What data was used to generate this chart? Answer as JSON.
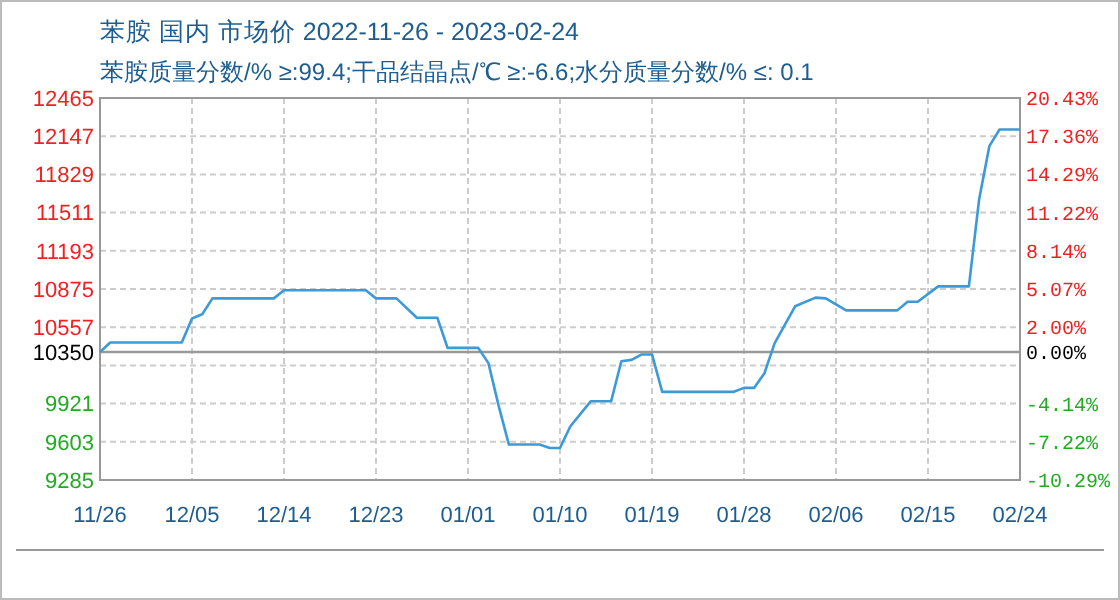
{
  "chart_data": {
    "type": "line",
    "title": "苯胺 国内 市场价 2022-11-26 - 2023-02-24",
    "subtitle": "苯胺质量分数/% ≥:99.4;干品结晶点/℃  ≥:-6.6;水分质量分数/%  ≤: 0.1",
    "x": [
      "2022-11-26",
      "2022-11-27",
      "2022-12-04",
      "2022-12-05",
      "2022-12-06",
      "2022-12-07",
      "2022-12-13",
      "2022-12-14",
      "2022-12-22",
      "2022-12-23",
      "2022-12-25",
      "2022-12-27",
      "2022-12-29",
      "2022-12-30",
      "2023-01-02",
      "2023-01-03",
      "2023-01-04",
      "2023-01-05",
      "2023-01-08",
      "2023-01-09",
      "2023-01-10",
      "2023-01-11",
      "2023-01-13",
      "2023-01-15",
      "2023-01-16",
      "2023-01-17",
      "2023-01-18",
      "2023-01-19",
      "2023-01-20",
      "2023-01-27",
      "2023-01-28",
      "2023-01-29",
      "2023-01-30",
      "2023-01-31",
      "2023-02-02",
      "2023-02-04",
      "2023-02-05",
      "2023-02-07",
      "2023-02-12",
      "2023-02-13",
      "2023-02-14",
      "2023-02-16",
      "2023-02-19",
      "2023-02-20",
      "2023-02-21",
      "2023-02-22",
      "2023-02-24"
    ],
    "series": [
      {
        "color": "#3c9ad8",
        "values": [
          10350,
          10430,
          10430,
          10630,
          10665,
          10797,
          10797,
          10864,
          10864,
          10797,
          10797,
          10636,
          10636,
          10385,
          10385,
          10258,
          9902,
          9580,
          9580,
          9551,
          9551,
          9730,
          9940,
          9940,
          10274,
          10285,
          10330,
          10330,
          10019,
          10019,
          10052,
          10052,
          10174,
          10424,
          10731,
          10803,
          10797,
          10697,
          10697,
          10769,
          10769,
          10897,
          10897,
          11620,
          12064,
          12203,
          12203
        ]
      }
    ],
    "xlim": [
      "2022-11-26",
      "2023-02-24"
    ],
    "xticks": [
      {
        "value": "2022-11-26",
        "label": "11/26"
      },
      {
        "value": "2022-12-05",
        "label": "12/05"
      },
      {
        "value": "2022-12-14",
        "label": "12/14"
      },
      {
        "value": "2022-12-23",
        "label": "12/23"
      },
      {
        "value": "2023-01-01",
        "label": "01/01"
      },
      {
        "value": "2023-01-10",
        "label": "01/10"
      },
      {
        "value": "2023-01-19",
        "label": "01/19"
      },
      {
        "value": "2023-01-28",
        "label": "01/28"
      },
      {
        "value": "2023-02-06",
        "label": "02/06"
      },
      {
        "value": "2023-02-15",
        "label": "02/15"
      },
      {
        "value": "2023-02-24",
        "label": "02/24"
      }
    ],
    "ylim": [
      9285,
      12465
    ],
    "yticks": [
      9285,
      9603,
      9921,
      {
        "value": 10239,
        "label": null
      },
      10350,
      10557,
      10875,
      11193,
      11511,
      11829,
      12147,
      12465
    ],
    "y2lim": [
      -10.29,
      20.43
    ],
    "y2ticks": [
      {
        "value": -10.29,
        "label": "-10.29%"
      },
      {
        "value": -7.22,
        "label": "-7.22%"
      },
      {
        "value": -4.14,
        "label": "-4.14%"
      },
      {
        "value": 0,
        "label": "0.00%"
      },
      {
        "value": 2.0,
        "label": "2.00%"
      },
      {
        "value": 5.07,
        "label": "5.07%"
      },
      {
        "value": 8.14,
        "label": "8.14%"
      },
      {
        "value": 11.22,
        "label": "11.22%"
      },
      {
        "value": 14.29,
        "label": "14.29%"
      },
      {
        "value": 17.36,
        "label": "17.36%"
      },
      {
        "value": 20.43,
        "label": "20.43%"
      }
    ],
    "ref_lines": [
      {
        "axis": "y",
        "value": 10350,
        "color": "#999999"
      }
    ],
    "grid": true,
    "marker": "none",
    "line_style": "solid"
  }
}
